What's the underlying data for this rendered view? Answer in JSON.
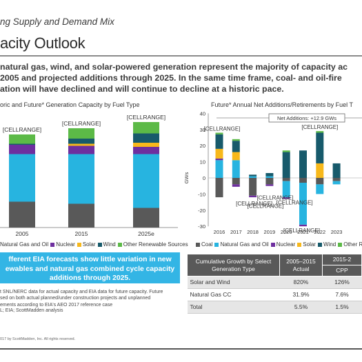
{
  "header": {
    "subtitle": "ng Supply and Demand Mix",
    "title": "acity Outlook",
    "lead": [
      "natural gas, wind, and solar-powered generation represent the majority of capacity ac",
      "2005 and projected additions through 2025. In the same time frame, coal- and oil-fire",
      "ation will have declined and will continue to decline at a historic pace."
    ]
  },
  "colors": {
    "coal": "#595959",
    "gas_oil": "#27b4e0",
    "nuclear": "#6e2f9f",
    "solar": "#f7b81b",
    "wind": "#175a6b",
    "other": "#5cba47"
  },
  "left_chart": {
    "title": "oric and Future* Generation Capacity by Fuel Type",
    "legend": [
      "Natural Gas and Oil",
      "Nuclear",
      "Solar",
      "Wind",
      "Other Renewable Sources"
    ],
    "legend_icons": [
      "gas-oil",
      "nuclear",
      "solar",
      "wind",
      "other"
    ]
  },
  "chart_data": [
    {
      "type": "bar",
      "stacked": true,
      "title": "oric and Future* Generation Capacity by Fuel Type",
      "categories": [
        "2005",
        "2015",
        "2025e"
      ],
      "data_labels": [
        "[CELLRANGE]",
        "[CELLRANGE]",
        "[CELLRANGE]"
      ],
      "series": [
        {
          "key": "coal",
          "values": [
            0.25,
            0.23,
            0.19
          ]
        },
        {
          "key": "gas_oil",
          "values": [
            0.46,
            0.48,
            0.52
          ]
        },
        {
          "key": "nuclear",
          "values": [
            0.09,
            0.08,
            0.07
          ]
        },
        {
          "key": "solar",
          "values": [
            0.0,
            0.02,
            0.04
          ]
        },
        {
          "key": "wind",
          "values": [
            0.01,
            0.05,
            0.09
          ]
        },
        {
          "key": "other",
          "values": [
            0.09,
            0.1,
            0.11
          ]
        }
      ],
      "ylim": [
        0,
        1.0
      ]
    },
    {
      "type": "bar",
      "stacked": true,
      "title": "Future* Annual Net Additions/Retirements by Fuel T",
      "ylabel": "GWs",
      "ylim": [
        -30,
        40
      ],
      "yticks": [
        -30,
        -20,
        -10,
        0,
        10,
        20,
        30,
        40
      ],
      "categories": [
        "2016",
        "2017",
        "2018",
        "2019",
        "2020",
        "2021",
        "2022",
        "2023"
      ],
      "annotation": "Net Additions: +12.9 GWs",
      "data_labels": [
        "[CELLRANGE]",
        "[CELLRANGE]",
        "[CELLRANGE]",
        "[CELLRANGE]",
        "[CELLRANGE]",
        "[CELLRANGE]",
        "[CELLRANGE]"
      ],
      "legend": [
        "Coal",
        "Natural Gas and Oil",
        "Nuclear",
        "Solar",
        "Wind",
        "Other Renewa"
      ],
      "legend_icons": [
        "coal",
        "gas-oil",
        "nuclear",
        "solar",
        "wind",
        "other"
      ],
      "series": [
        {
          "key": "coal",
          "values": [
            -12,
            -4,
            -11,
            -4,
            -2,
            -3,
            -4,
            -2
          ]
        },
        {
          "key": "gas_oil",
          "values": [
            11,
            11,
            1,
            1,
            -10,
            -26,
            -6,
            -2
          ]
        },
        {
          "key": "nuclear",
          "values": [
            1,
            -1.5,
            -1,
            -1,
            -1,
            -1,
            0,
            0
          ]
        },
        {
          "key": "solar",
          "values": [
            6,
            5,
            0,
            0,
            0,
            0,
            9,
            0
          ]
        },
        {
          "key": "wind",
          "values": [
            9,
            7,
            1,
            2,
            16,
            17,
            19,
            9
          ]
        },
        {
          "key": "other",
          "values": [
            1,
            1,
            0,
            0,
            1,
            0,
            1,
            0
          ]
        }
      ]
    }
  ],
  "callout": {
    "lines": [
      "fferent EIA forecasts show little variation in new",
      "ewables and natural gas combined cycle capacity",
      "additions through 2025."
    ]
  },
  "notes": {
    "lines": [
      "t SNL/NERC data for actual capacity and EIA data for future capacity. Future",
      "sed on both actual planned/under construction projects and unplanned",
      "ements according to EIA's AEO 2017 reference case"
    ],
    "source": "L; EIA; ScottMadden analysis",
    "copyright": "017 by ScottMadden, Inc. All rights reserved."
  },
  "table": {
    "header_col1": "Cumulative Growth by Select Generation Type",
    "header_col2": "2005–2015 Actual",
    "header_col3_top": "2015-2",
    "header_col3_sub": "CPP",
    "rows": [
      {
        "label": "Solar and Wind",
        "actual": "820%",
        "cpp": "126%"
      },
      {
        "label": "Natural Gas CC",
        "actual": "31.9%",
        "cpp": "7.6%"
      },
      {
        "label": "Total",
        "actual": "5.5%",
        "cpp": "1.5%"
      }
    ]
  }
}
